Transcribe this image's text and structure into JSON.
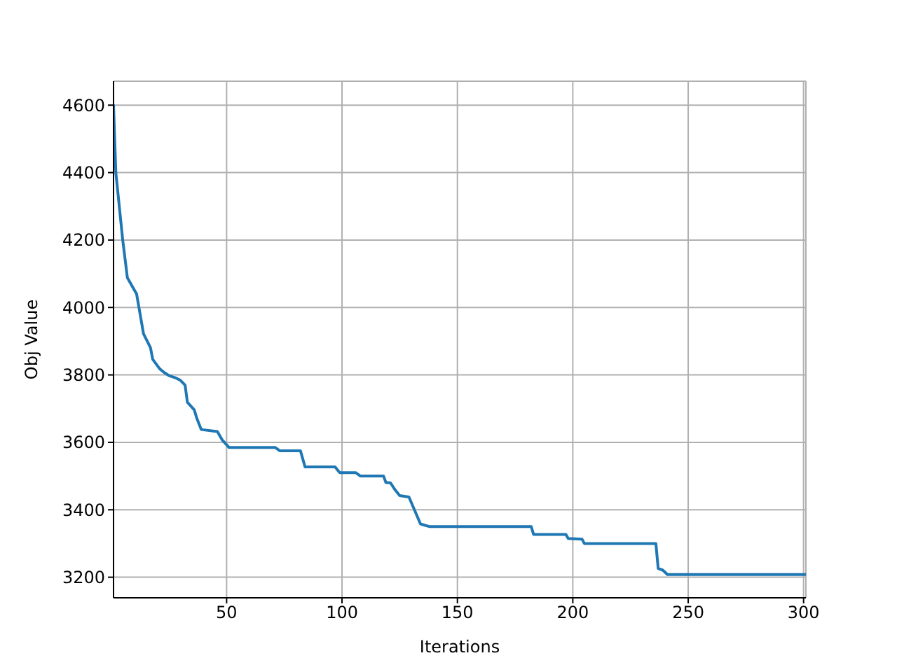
{
  "chart_data": {
    "type": "line",
    "xlabel": "Iterations",
    "ylabel": "Obj Value",
    "x": [
      1,
      2,
      5,
      7,
      11,
      14,
      17,
      18,
      21,
      23,
      25,
      28,
      30,
      32,
      33,
      36,
      37,
      39,
      46,
      48,
      51,
      71,
      73,
      82,
      84,
      97,
      99,
      106,
      108,
      118,
      119,
      121,
      123,
      125,
      129,
      134,
      138,
      182,
      183,
      197,
      198,
      204,
      205,
      236,
      237,
      239,
      241,
      301
    ],
    "series": [
      {
        "color": "#1f77b4",
        "values": [
          4600,
          4400,
          4199,
          4088,
          4040,
          3922,
          3881,
          3846,
          3818,
          3807,
          3798,
          3791,
          3784,
          3770,
          3719,
          3696,
          3673,
          3638,
          3632,
          3608,
          3585,
          3585,
          3575,
          3575,
          3527,
          3527,
          3510,
          3510,
          3500,
          3500,
          3481,
          3480,
          3459,
          3442,
          3438,
          3358,
          3350,
          3350,
          3327,
          3327,
          3315,
          3313,
          3300,
          3300,
          3226,
          3221,
          3208,
          3208
        ]
      }
    ],
    "xlim": [
      1,
      301
    ],
    "ylim": [
      3139,
      4671
    ],
    "xticks": [
      50,
      100,
      150,
      200,
      250,
      300
    ],
    "yticks": [
      3200,
      3400,
      3600,
      3800,
      4000,
      4200,
      4400,
      4600
    ],
    "grid": true,
    "marker": "none",
    "line_style": "solid"
  }
}
